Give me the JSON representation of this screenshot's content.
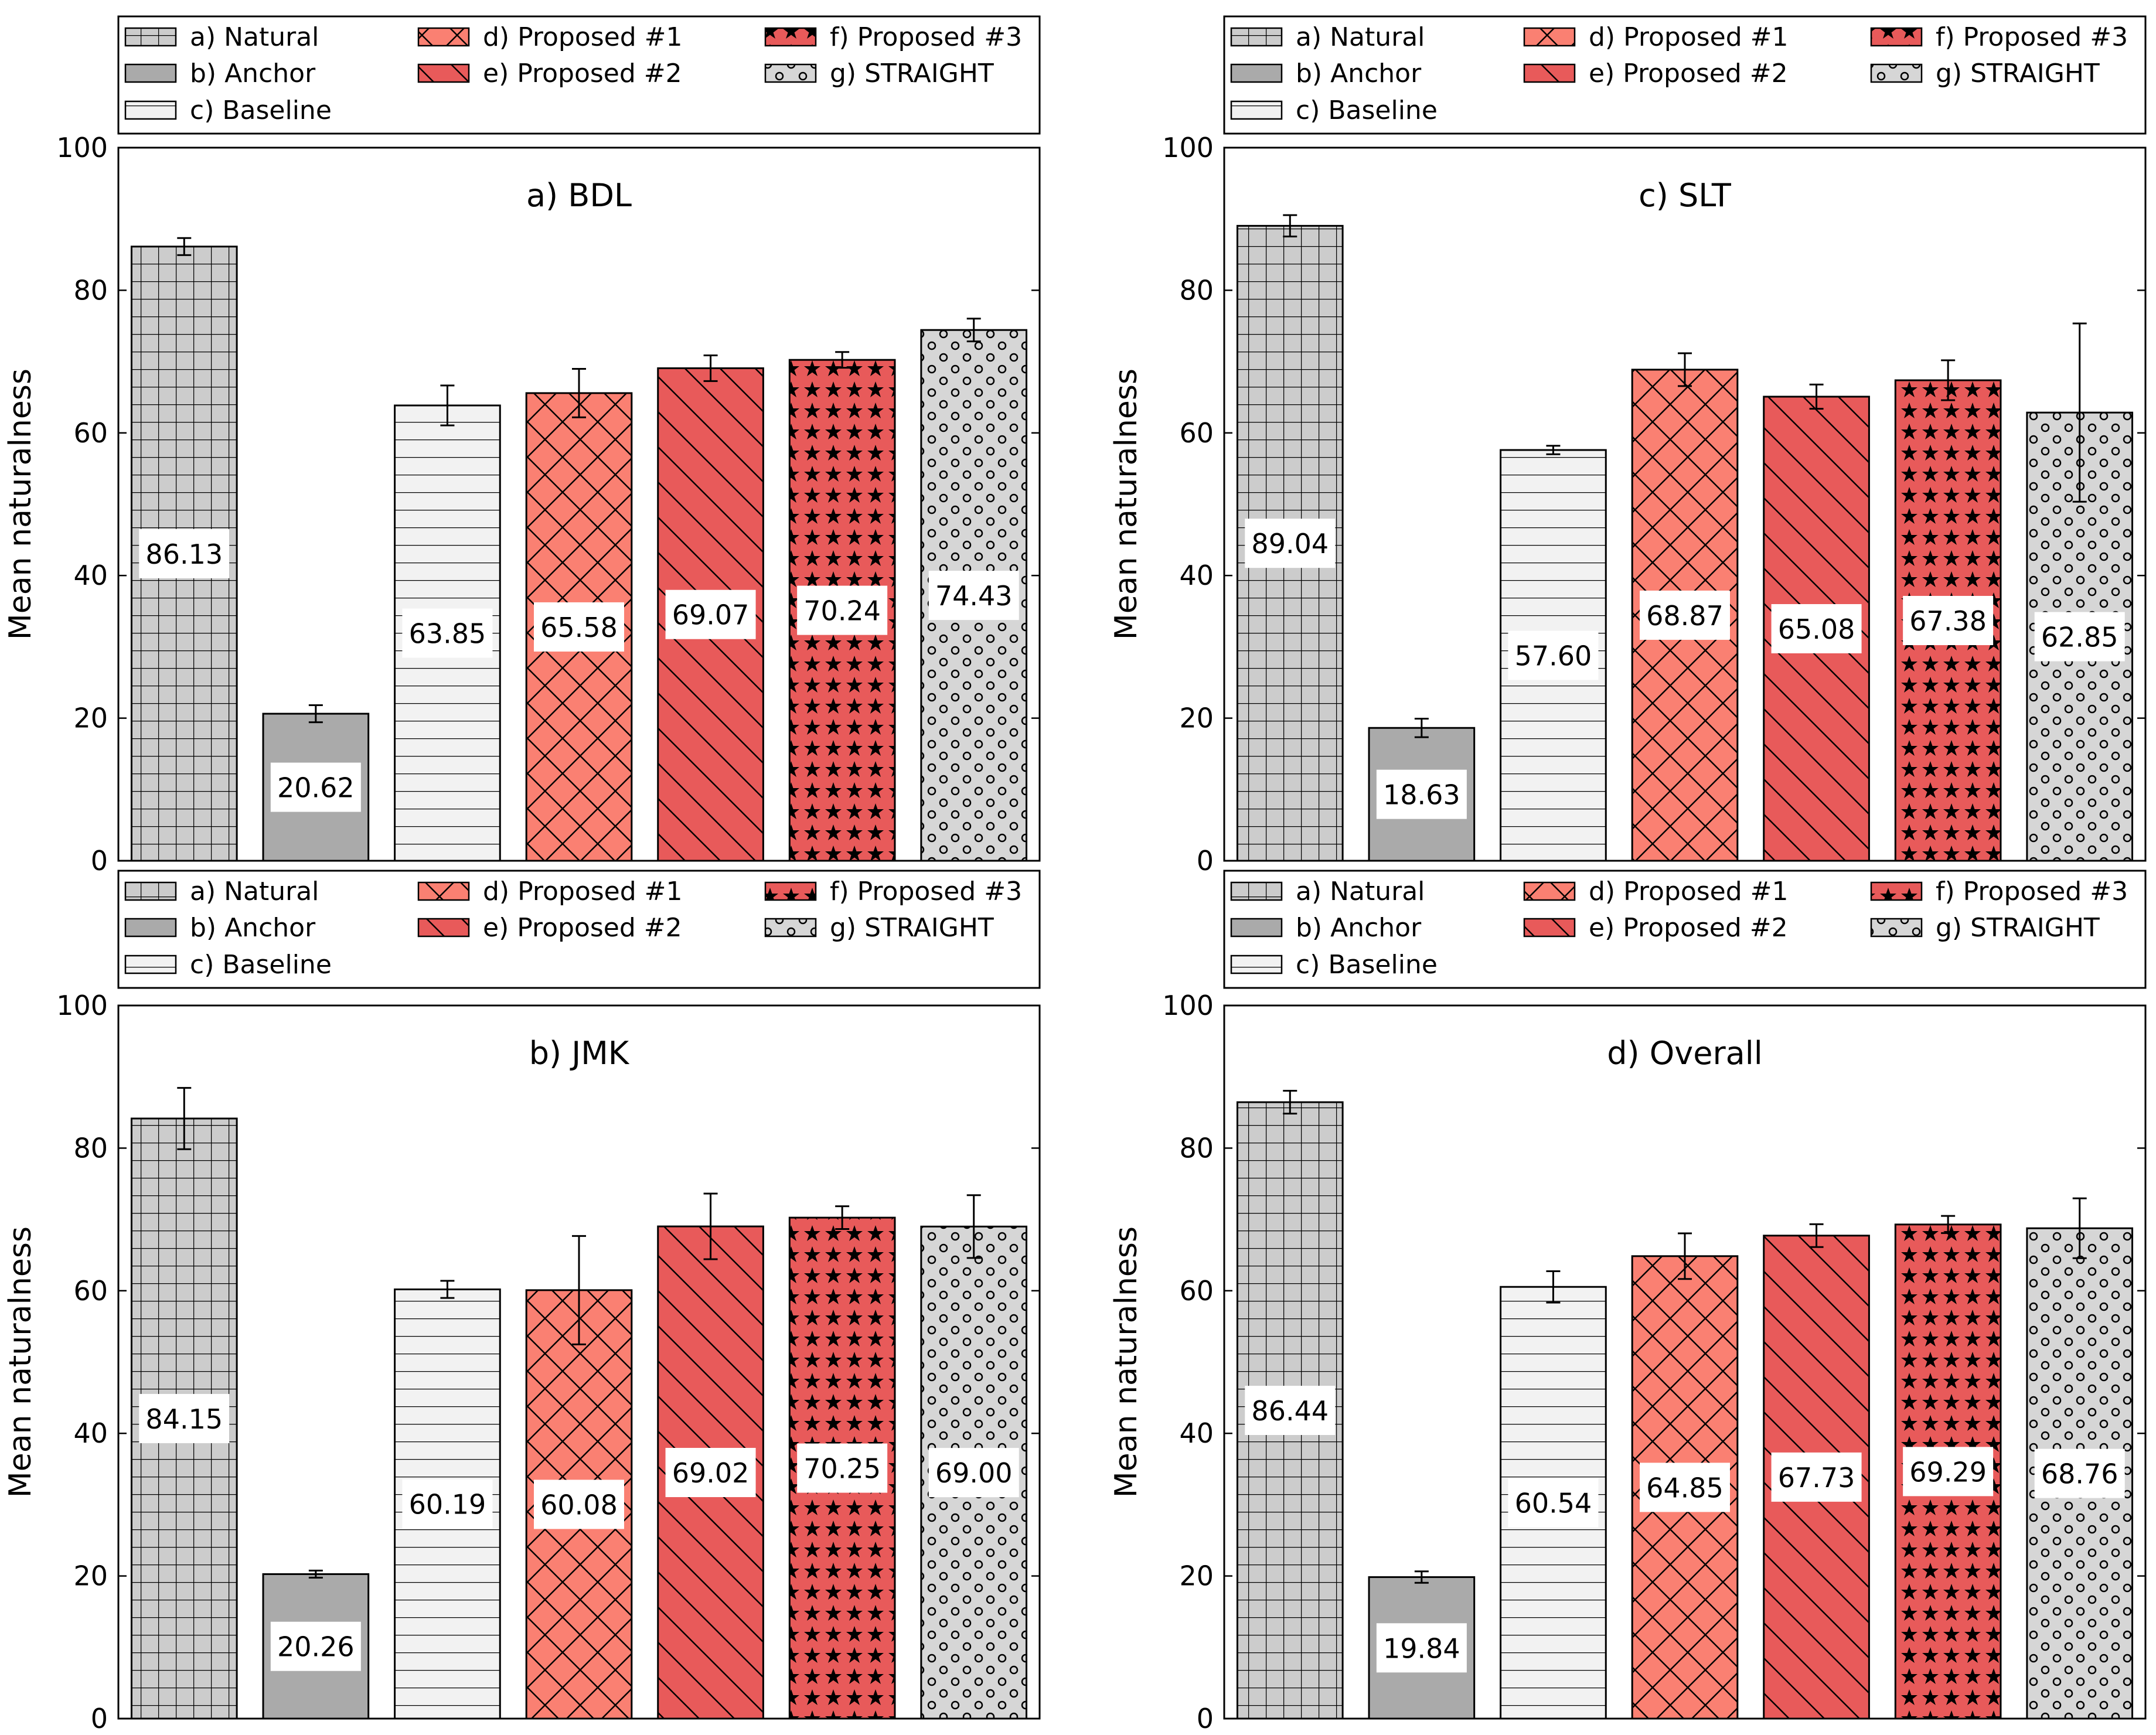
{
  "figure": {
    "legend_entries": [
      {
        "key": "natural",
        "label": "a) Natural"
      },
      {
        "key": "anchor",
        "label": "b) Anchor"
      },
      {
        "key": "baseline",
        "label": "c) Baseline"
      },
      {
        "key": "proposed1",
        "label": "d) Proposed #1"
      },
      {
        "key": "proposed2",
        "label": "e) Proposed #2"
      },
      {
        "key": "proposed3",
        "label": "f) Proposed #3"
      },
      {
        "key": "straight",
        "label": "g) STRAIGHT"
      }
    ],
    "series_style": {
      "natural": {
        "fill": "#cccccc",
        "pattern": "grid"
      },
      "anchor": {
        "fill": "#aaaaaa",
        "pattern": "none"
      },
      "baseline": {
        "fill": "#f2f2f2",
        "pattern": "horizontal"
      },
      "proposed1": {
        "fill": "#fa8072",
        "pattern": "crosshatch"
      },
      "proposed2": {
        "fill": "#e85a5a",
        "pattern": "diagonal"
      },
      "proposed3": {
        "fill": "#e85a5a",
        "pattern": "stars"
      },
      "straight": {
        "fill": "#d6d6d6",
        "pattern": "circles"
      }
    }
  },
  "chart_data": [
    {
      "type": "bar",
      "title": "a) BDL",
      "ylabel": "Mean naturalness",
      "xlabel": "",
      "ylim": [
        0,
        100
      ],
      "yticks": [
        0,
        20,
        40,
        60,
        80,
        100
      ],
      "categories": [
        "a) Natural",
        "b) Anchor",
        "c) Baseline",
        "d) Proposed #1",
        "e) Proposed #2",
        "f) Proposed #3",
        "g) STRAIGHT"
      ],
      "values": [
        86.13,
        20.62,
        63.85,
        65.58,
        69.07,
        70.24,
        74.43
      ],
      "value_labels": [
        "86.13",
        "20.62",
        "63.85",
        "65.58",
        "69.07",
        "70.24",
        "74.43"
      ],
      "errors": [
        1.2,
        1.2,
        2.8,
        3.4,
        1.8,
        1.1,
        1.6
      ],
      "legend": "top"
    },
    {
      "type": "bar",
      "title": "c) SLT",
      "ylabel": "Mean naturalness",
      "xlabel": "",
      "ylim": [
        0,
        100
      ],
      "yticks": [
        0,
        20,
        40,
        60,
        80,
        100
      ],
      "categories": [
        "a) Natural",
        "b) Anchor",
        "c) Baseline",
        "d) Proposed #1",
        "e) Proposed #2",
        "f) Proposed #3",
        "g) STRAIGHT"
      ],
      "values": [
        89.04,
        18.63,
        57.6,
        68.87,
        65.08,
        67.38,
        62.85
      ],
      "value_labels": [
        "89.04",
        "18.63",
        "57.60",
        "68.87",
        "65.08",
        "67.38",
        "62.85"
      ],
      "errors": [
        1.5,
        1.3,
        0.6,
        2.3,
        1.7,
        2.8,
        12.5
      ],
      "legend": "top"
    },
    {
      "type": "bar",
      "title": "b) JMK",
      "ylabel": "Mean naturalness",
      "xlabel": "",
      "ylim": [
        0,
        100
      ],
      "yticks": [
        0,
        20,
        40,
        60,
        80,
        100
      ],
      "categories": [
        "a) Natural",
        "b) Anchor",
        "c) Baseline",
        "d) Proposed #1",
        "e) Proposed #2",
        "f) Proposed #3",
        "g) STRAIGHT"
      ],
      "values": [
        84.15,
        20.26,
        60.19,
        60.08,
        69.02,
        70.25,
        69.0
      ],
      "value_labels": [
        "84.15",
        "20.26",
        "60.19",
        "60.08",
        "69.02",
        "70.25",
        "69.00"
      ],
      "errors": [
        4.3,
        0.5,
        1.2,
        7.6,
        4.6,
        1.6,
        4.4
      ],
      "legend": "top"
    },
    {
      "type": "bar",
      "title": "d) Overall",
      "ylabel": "Mean naturalness",
      "xlabel": "",
      "ylim": [
        0,
        100
      ],
      "yticks": [
        0,
        20,
        40,
        60,
        80,
        100
      ],
      "categories": [
        "a) Natural",
        "b) Anchor",
        "c) Baseline",
        "d) Proposed #1",
        "e) Proposed #2",
        "f) Proposed #3",
        "g) STRAIGHT"
      ],
      "values": [
        86.44,
        19.84,
        60.54,
        64.85,
        67.73,
        69.29,
        68.76
      ],
      "value_labels": [
        "86.44",
        "19.84",
        "60.54",
        "64.85",
        "67.73",
        "69.29",
        "68.76"
      ],
      "errors": [
        1.6,
        0.8,
        2.2,
        3.2,
        1.6,
        1.2,
        4.2
      ],
      "legend": "top"
    }
  ]
}
